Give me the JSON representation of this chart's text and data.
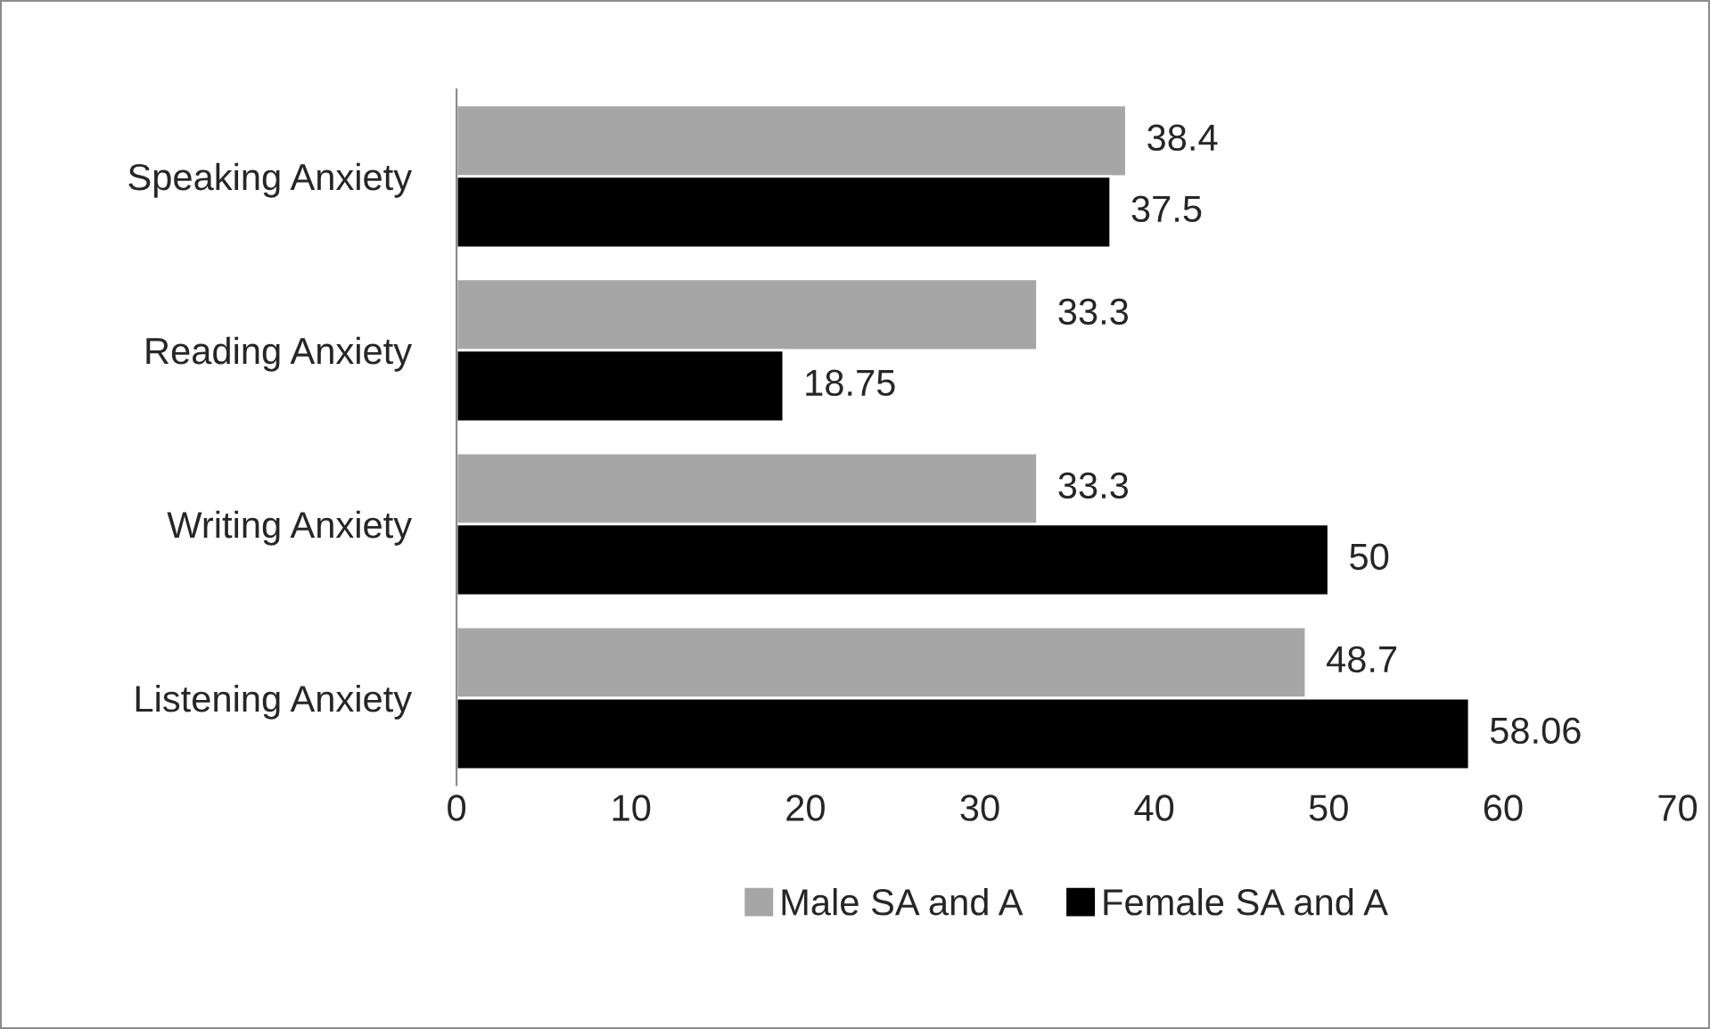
{
  "chart_data": {
    "type": "bar",
    "orientation": "horizontal",
    "categories": [
      "Speaking Anxiety",
      "Reading Anxiety",
      "Writing Anxiety",
      "Listening Anxiety"
    ],
    "series": [
      {
        "name": "Male SA and A",
        "color": "#a6a6a6",
        "values": [
          38.4,
          33.3,
          33.3,
          48.7
        ]
      },
      {
        "name": "Female SA and A",
        "color": "#000000",
        "values": [
          37.5,
          18.75,
          50,
          58.06
        ]
      }
    ],
    "xlim": [
      0,
      70
    ],
    "xticks": [
      0,
      10,
      20,
      30,
      40,
      50,
      60,
      70
    ],
    "data_labels": true,
    "grid": false,
    "legend": "bottom"
  }
}
